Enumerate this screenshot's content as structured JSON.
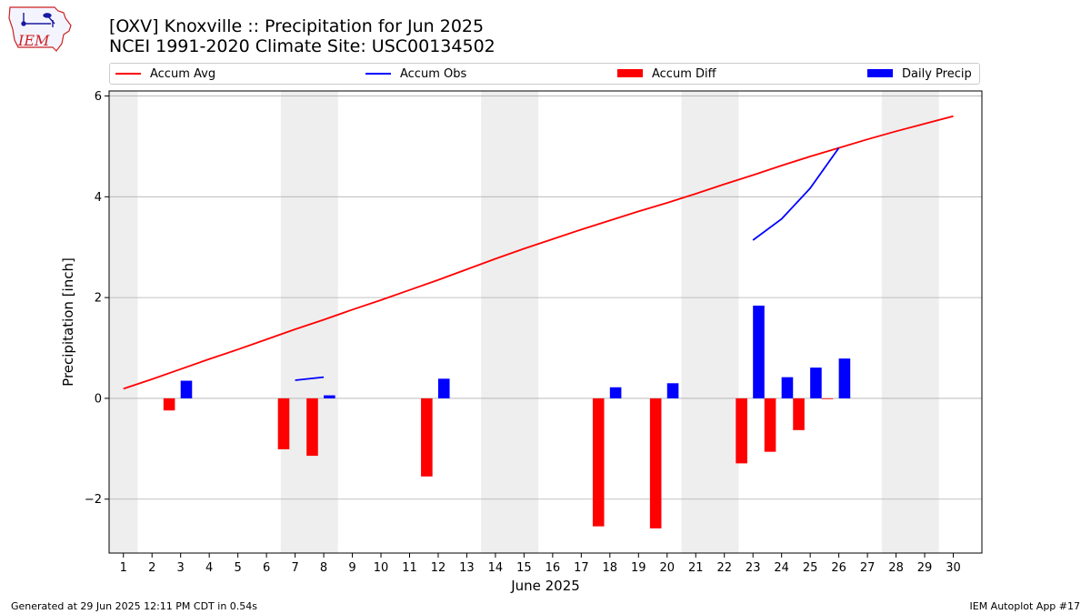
{
  "logo": {
    "text": "IEM",
    "color": "#cc2222"
  },
  "footer": {
    "generated": "Generated at 29 Jun 2025 12:11 PM CDT in 0.54s",
    "app": "IEM Autoplot App #17"
  },
  "colors": {
    "avg": "#ff0000",
    "obs": "#0000ff",
    "diff": "#ff0000",
    "daily": "#0000ff",
    "weekend": "#eeeeee",
    "grid": "#b0b0b0"
  },
  "chart_data": {
    "type": "bar",
    "title": "[OXV] Knoxville :: Precipitation for Jun 2025",
    "subtitle": "NCEI 1991-2020 Climate Site: USC00134502",
    "xlabel": "June 2025",
    "ylabel": "Precipitation [inch]",
    "xlim": [
      0.5,
      31.0
    ],
    "ylim": [
      -3.07,
      6.1
    ],
    "grid": "y",
    "legend_placement": "top",
    "x": [
      1,
      2,
      3,
      4,
      5,
      6,
      7,
      8,
      9,
      10,
      11,
      12,
      13,
      14,
      15,
      16,
      17,
      18,
      19,
      20,
      21,
      22,
      23,
      24,
      25,
      26,
      27,
      28,
      29,
      30
    ],
    "yticks": [
      -2,
      0,
      2,
      4,
      6
    ],
    "ytick_labels": [
      "−2",
      "0",
      "2",
      "4",
      "6"
    ],
    "weekend_spans": [
      [
        0.5,
        1.5
      ],
      [
        6.5,
        8.5
      ],
      [
        13.5,
        15.5
      ],
      [
        20.5,
        22.5
      ],
      [
        27.5,
        29.5
      ]
    ],
    "legend": [
      "Accum Avg",
      "Accum Obs",
      "Accum Diff",
      "Daily Precip"
    ],
    "series": [
      {
        "name": "Accum Avg",
        "type": "line",
        "x": [
          1,
          2,
          3,
          4,
          5,
          6,
          7,
          8,
          9,
          10,
          11,
          12,
          13,
          14,
          15,
          16,
          17,
          18,
          19,
          20,
          21,
          22,
          23,
          24,
          25,
          26,
          27,
          28,
          29,
          30
        ],
        "values": [
          0.19,
          0.38,
          0.58,
          0.78,
          0.97,
          1.17,
          1.37,
          1.56,
          1.76,
          1.95,
          2.15,
          2.35,
          2.56,
          2.77,
          2.97,
          3.16,
          3.35,
          3.53,
          3.71,
          3.88,
          4.06,
          4.25,
          4.43,
          4.62,
          4.8,
          4.97,
          5.14,
          5.3,
          5.45,
          5.6
        ]
      },
      {
        "name": "Accum Obs",
        "type": "line",
        "segments": [
          {
            "x": [
              7,
              8
            ],
            "values": [
              0.36,
              0.42
            ]
          },
          {
            "x": [
              23,
              24,
              25,
              26
            ],
            "values": [
              3.14,
              3.56,
              4.17,
              4.97
            ]
          }
        ]
      },
      {
        "name": "Accum Diff",
        "type": "bar",
        "x": [
          3,
          7,
          8,
          12,
          18,
          20,
          23,
          24,
          25,
          26
        ],
        "values": [
          -0.24,
          -1.01,
          -1.14,
          -1.55,
          -2.54,
          -2.58,
          -1.29,
          -1.06,
          -0.63,
          -0.01
        ]
      },
      {
        "name": "Daily Precip",
        "type": "bar",
        "x": [
          3,
          8,
          12,
          18,
          20,
          23,
          24,
          25,
          26
        ],
        "values": [
          0.35,
          0.06,
          0.39,
          0.22,
          0.3,
          1.84,
          0.42,
          0.61,
          0.79
        ]
      }
    ]
  }
}
